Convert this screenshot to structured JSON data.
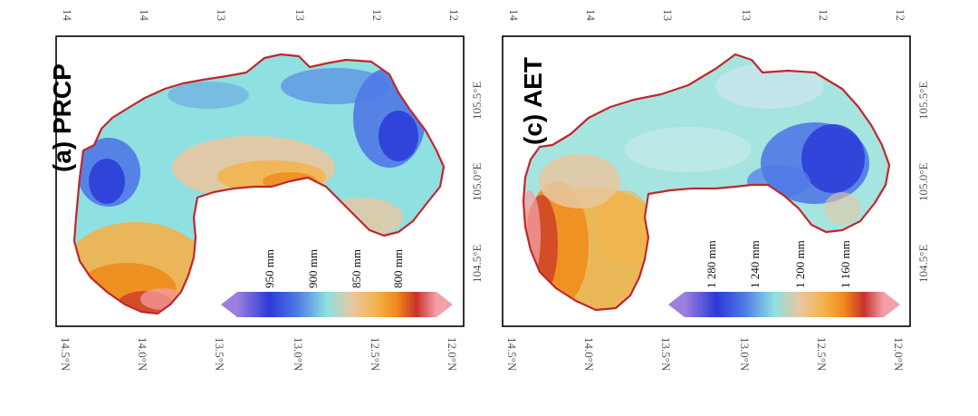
{
  "colors": {
    "boundary": "#c0272d",
    "prcp_scale": [
      "#9c7fe0",
      "#2b3ad8",
      "#4f79e6",
      "#8fe0e0",
      "#e8c7a0",
      "#f3b34a",
      "#f08a1a",
      "#c8322a",
      "#f3a0a8"
    ],
    "aet_scale": [
      "#9c7fe0",
      "#2b3ad8",
      "#4f79e6",
      "#8fe0e0",
      "#e8c7a0",
      "#f3b34a",
      "#f08a1a",
      "#c8322a",
      "#f3a0a8"
    ]
  },
  "panels": [
    {
      "id": "prcp",
      "title": "(a) PRCP",
      "lat_labels": [
        "14.5°N",
        "14.0°N",
        "13.5°N",
        "13.0°N",
        "12.5°N",
        "12.0°N"
      ],
      "lon_labels": [
        "104.5°E",
        "105.0°E",
        "105.5°E"
      ],
      "top_labels": [
        "14",
        "14",
        "13",
        "13",
        "12",
        "12"
      ],
      "legend_labels": [
        "950 mm",
        "900 mm",
        "850 mm",
        "800 mm"
      ]
    },
    {
      "id": "aet",
      "title": "(c) AET",
      "lat_labels": [
        "14.5°N",
        "14.0°N",
        "13.5°N",
        "13.0°N",
        "12.5°N",
        "12.0°N"
      ],
      "lon_labels": [
        "104.5°E",
        "105.0°E",
        "105.5°E"
      ],
      "top_labels": [
        "14",
        "14",
        "13",
        "13",
        "12",
        "12"
      ],
      "legend_labels": [
        "1 280 mm",
        "1 240 mm",
        "1 200 mm",
        "1 160 mm"
      ]
    }
  ]
}
